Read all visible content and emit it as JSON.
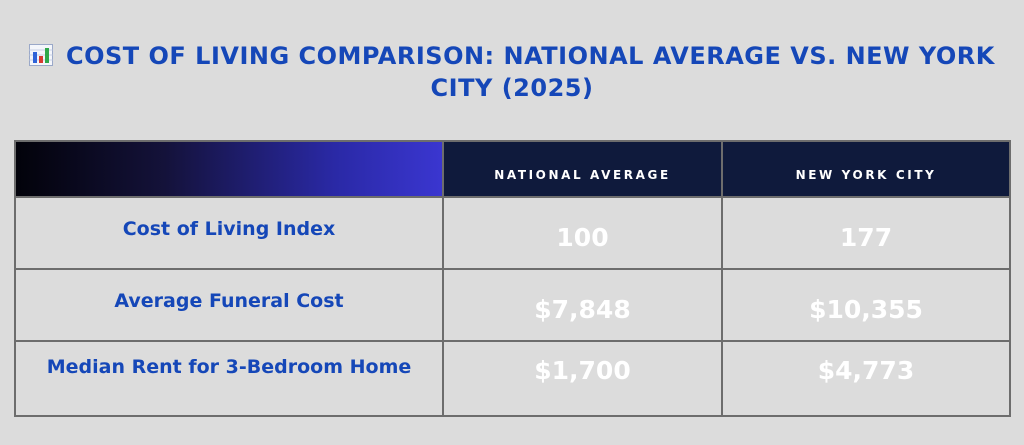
{
  "title": {
    "icon": "bar-chart-icon",
    "text": "Cost of Living Comparison: National Average vs. New York City (2025)"
  },
  "table": {
    "columns": [
      "",
      "NATIONAL AVERAGE",
      "NEW YORK CITY"
    ],
    "rows": [
      {
        "label": "Cost of Living Index",
        "national": "100",
        "nyc": "177"
      },
      {
        "label": "Average Funeral Cost",
        "national": "$7,848",
        "nyc": "$10,355"
      },
      {
        "label": "Median Rent for 3-Bedroom Home",
        "national": "$1,700",
        "nyc": "$4,773"
      }
    ]
  },
  "colors": {
    "title": "#1547b8",
    "header_bg": "#0f1a3c",
    "background": "#dcdcdc",
    "value_text": "#ffffff",
    "border": "#6d6d6d"
  }
}
